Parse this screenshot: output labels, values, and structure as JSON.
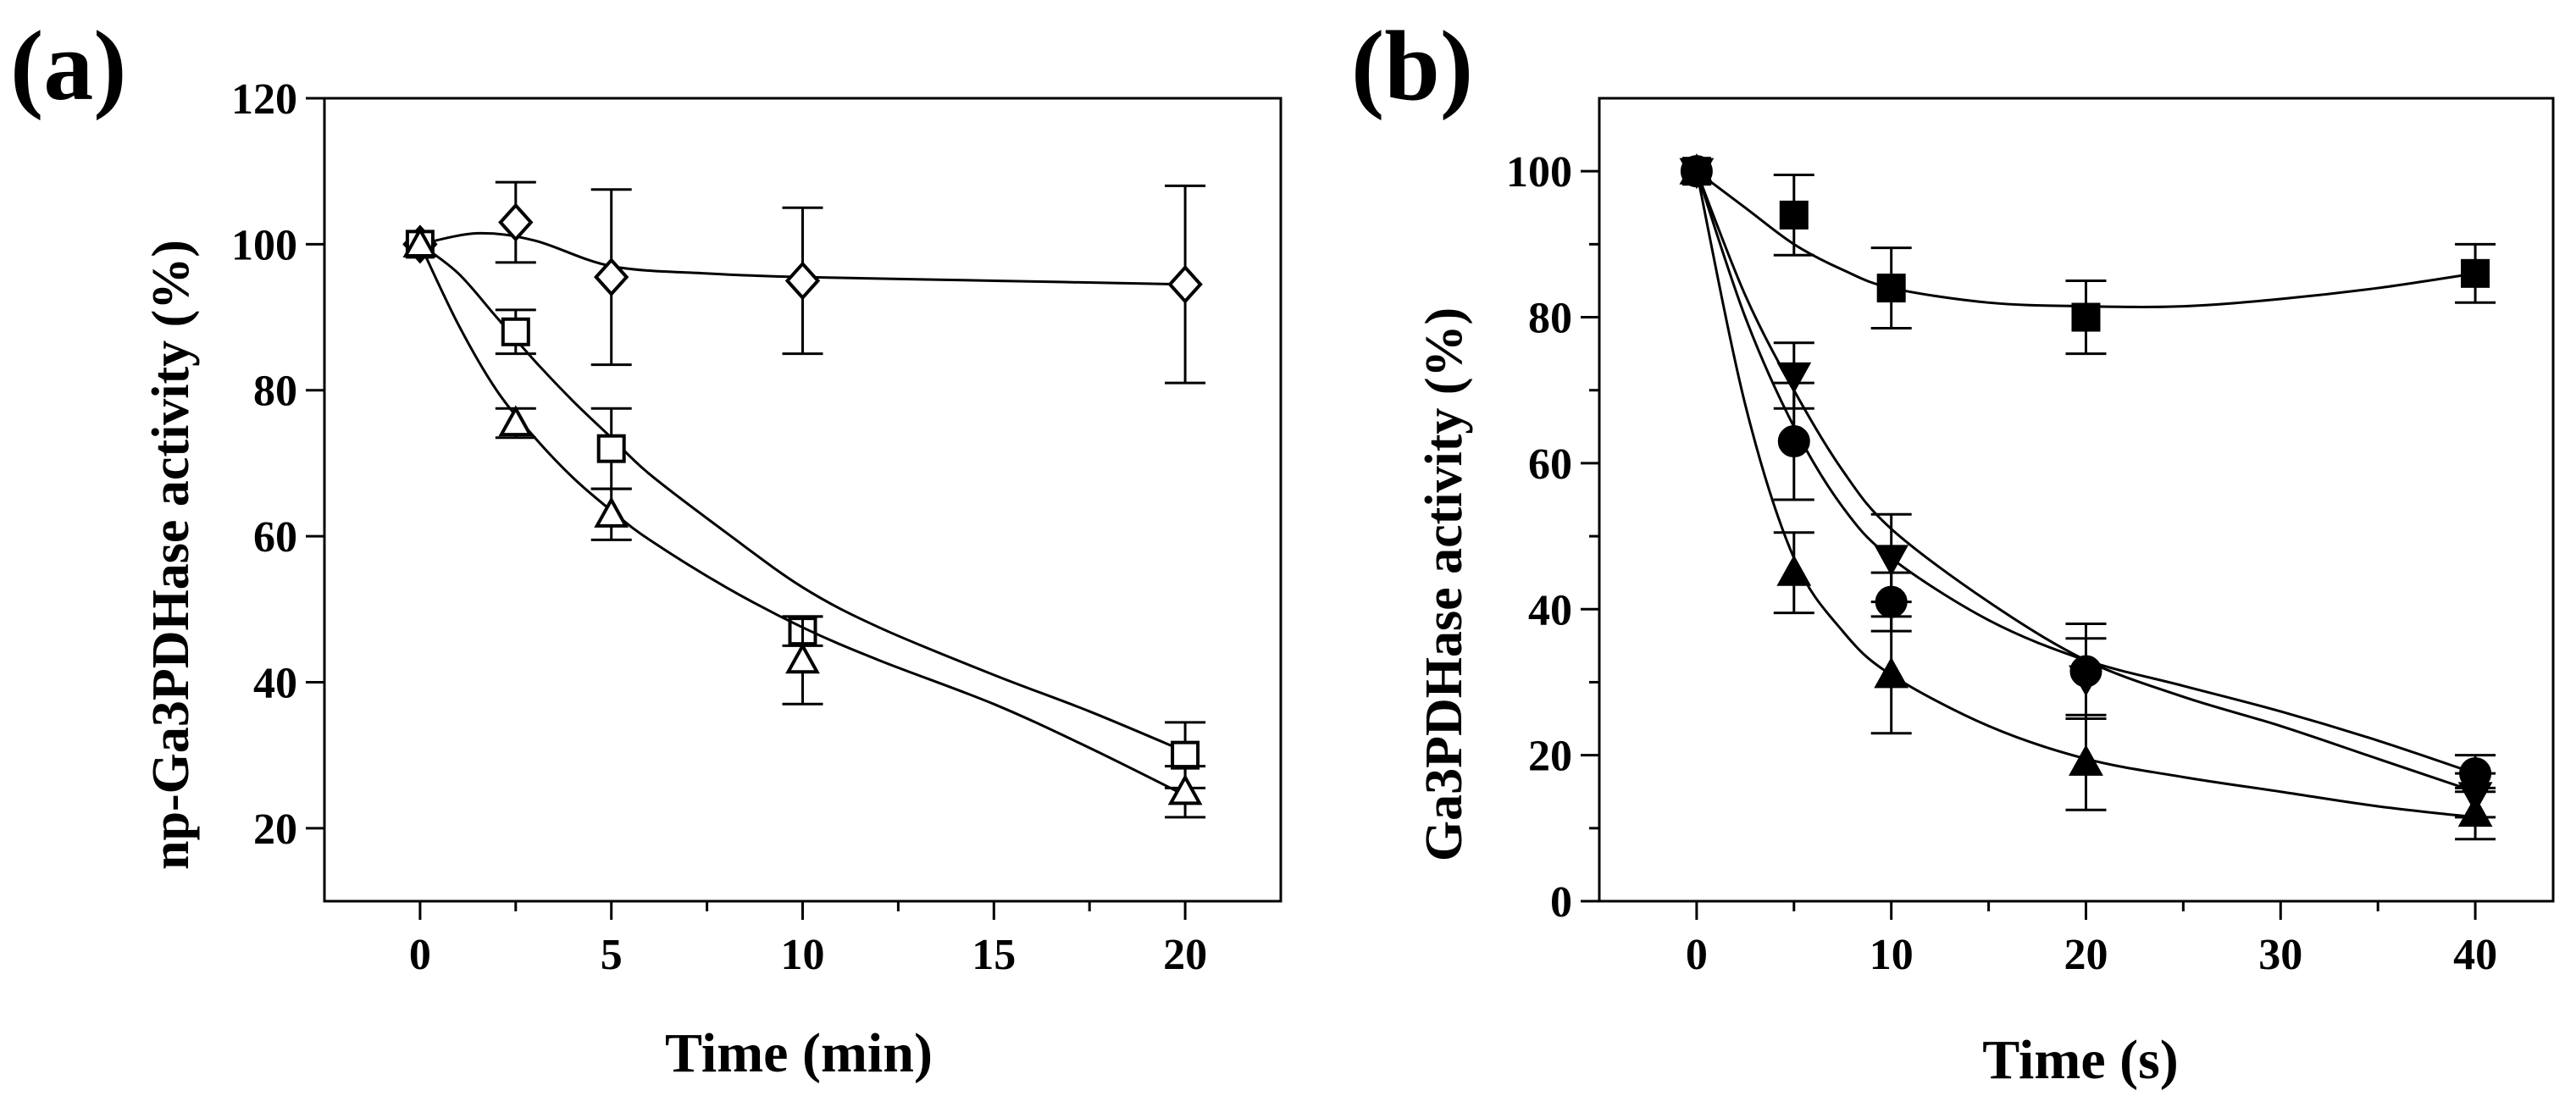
{
  "chart_data": [
    {
      "type": "line",
      "panel_label": "(a)",
      "xlabel": "Time (min)",
      "ylabel": "np-Ga3PDHase activity (%)",
      "xlim": [
        -2.5,
        22.5
      ],
      "ylim": [
        10,
        120
      ],
      "xticks": [
        0,
        5,
        10,
        15,
        20
      ],
      "yticks": [
        20,
        40,
        60,
        80,
        100,
        120
      ],
      "xtick_labels": [
        "0",
        "5",
        "10",
        "15",
        "20"
      ],
      "ytick_labels": [
        "20",
        "40",
        "60",
        "80",
        "100",
        "120"
      ],
      "series": [
        {
          "name": "open diamond",
          "marker": "diamond-open",
          "x": [
            0,
            2.5,
            5,
            10,
            20
          ],
          "y": [
            100,
            103,
            95.5,
            95,
            94.5
          ],
          "err": [
            0,
            5.5,
            12,
            10,
            13.5
          ],
          "fit": [
            [
              0,
              100
            ],
            [
              1.5,
              101.5
            ],
            [
              3,
              100.5
            ],
            [
              5,
              97
            ],
            [
              7.5,
              96
            ],
            [
              10,
              95.5
            ],
            [
              15,
              95
            ],
            [
              20,
              94.5
            ]
          ]
        },
        {
          "name": "open square",
          "marker": "square-open",
          "x": [
            0,
            2.5,
            5,
            10,
            20
          ],
          "y": [
            100,
            88,
            72,
            47,
            30
          ],
          "err": [
            0,
            3,
            5.5,
            2,
            4.5
          ],
          "fit": [
            [
              0,
              100
            ],
            [
              1,
              96
            ],
            [
              2,
              90
            ],
            [
              3,
              84
            ],
            [
              4,
              78.5
            ],
            [
              5,
              73.5
            ],
            [
              6,
              68.5
            ],
            [
              8,
              60.5
            ],
            [
              10,
              53
            ],
            [
              12,
              47.5
            ],
            [
              15,
              41
            ],
            [
              17.5,
              36
            ],
            [
              20,
              30.5
            ]
          ]
        },
        {
          "name": "open triangle",
          "marker": "triangle-open",
          "x": [
            0,
            2.5,
            5,
            10,
            20
          ],
          "y": [
            100,
            75.5,
            63,
            43,
            25
          ],
          "err": [
            0,
            2,
            3.5,
            6,
            3.5
          ],
          "fit": [
            [
              0,
              100
            ],
            [
              1,
              89
            ],
            [
              2,
              80
            ],
            [
              3,
              73.5
            ],
            [
              4,
              68
            ],
            [
              5,
              63.5
            ],
            [
              6,
              59.5
            ],
            [
              8,
              53
            ],
            [
              10,
              47.5
            ],
            [
              12,
              43
            ],
            [
              15,
              37
            ],
            [
              17.5,
              31
            ],
            [
              20,
              24.5
            ]
          ]
        }
      ]
    },
    {
      "type": "line",
      "panel_label": "(b)",
      "xlabel": "Time (s)",
      "ylabel": "Ga3PDHase activity (%)",
      "xlim": [
        -5,
        44
      ],
      "ylim": [
        0,
        110
      ],
      "xticks": [
        0,
        10,
        20,
        30,
        40
      ],
      "yticks": [
        0,
        20,
        40,
        60,
        80,
        100
      ],
      "xtick_labels": [
        "0",
        "10",
        "20",
        "30",
        "40"
      ],
      "ytick_labels": [
        "0",
        "20",
        "40",
        "60",
        "80",
        "100"
      ],
      "series": [
        {
          "name": "filled square",
          "marker": "square-filled",
          "x": [
            0,
            5,
            10,
            20,
            40
          ],
          "y": [
            100,
            94,
            84,
            80,
            86
          ],
          "err": [
            0,
            5.5,
            5.5,
            5,
            4
          ],
          "fit": [
            [
              0,
              100
            ],
            [
              2.5,
              95
            ],
            [
              5,
              90
            ],
            [
              7.5,
              86.5
            ],
            [
              10,
              84
            ],
            [
              15,
              82
            ],
            [
              20,
              81.5
            ],
            [
              25,
              81.5
            ],
            [
              30,
              82.5
            ],
            [
              35,
              84
            ],
            [
              40,
              86
            ]
          ]
        },
        {
          "name": "filled down-triangle",
          "marker": "triangle-down-filled",
          "x": [
            0,
            5,
            10,
            20,
            40
          ],
          "y": [
            100,
            72,
            47,
            30.5,
            14.5
          ],
          "err": [
            0,
            4.5,
            6,
            5.5,
            3
          ],
          "fit": [
            [
              0,
              100
            ],
            [
              2.5,
              83
            ],
            [
              5,
              70
            ],
            [
              7.5,
              59
            ],
            [
              10,
              51
            ],
            [
              15,
              41
            ],
            [
              20,
              33
            ],
            [
              25,
              28
            ],
            [
              30,
              24
            ],
            [
              35,
              19.5
            ],
            [
              40,
              15
            ]
          ]
        },
        {
          "name": "filled circle",
          "marker": "circle-filled",
          "x": [
            0,
            5,
            10,
            20,
            40
          ],
          "y": [
            100,
            63,
            41,
            31.5,
            17.5
          ],
          "err": [
            0,
            8,
            4,
            6.5,
            2.5
          ],
          "fit": [
            [
              0,
              100
            ],
            [
              2.5,
              80
            ],
            [
              5,
              65
            ],
            [
              7.5,
              54
            ],
            [
              10,
              47
            ],
            [
              15,
              38.5
            ],
            [
              20,
              33
            ],
            [
              25,
              29.5
            ],
            [
              30,
              26
            ],
            [
              35,
              22
            ],
            [
              40,
              17.5
            ]
          ]
        },
        {
          "name": "filled triangle",
          "marker": "triangle-up-filled",
          "x": [
            0,
            5,
            10,
            20,
            40
          ],
          "y": [
            100,
            45,
            31,
            19,
            12
          ],
          "err": [
            0,
            5.5,
            8,
            6.5,
            3.5
          ],
          "fit": [
            [
              0,
              100
            ],
            [
              2.5,
              68
            ],
            [
              5,
              47
            ],
            [
              7.5,
              37
            ],
            [
              10,
              31
            ],
            [
              15,
              24
            ],
            [
              20,
              19.5
            ],
            [
              25,
              17
            ],
            [
              30,
              15
            ],
            [
              35,
              13
            ],
            [
              40,
              11.5
            ]
          ]
        }
      ]
    }
  ]
}
